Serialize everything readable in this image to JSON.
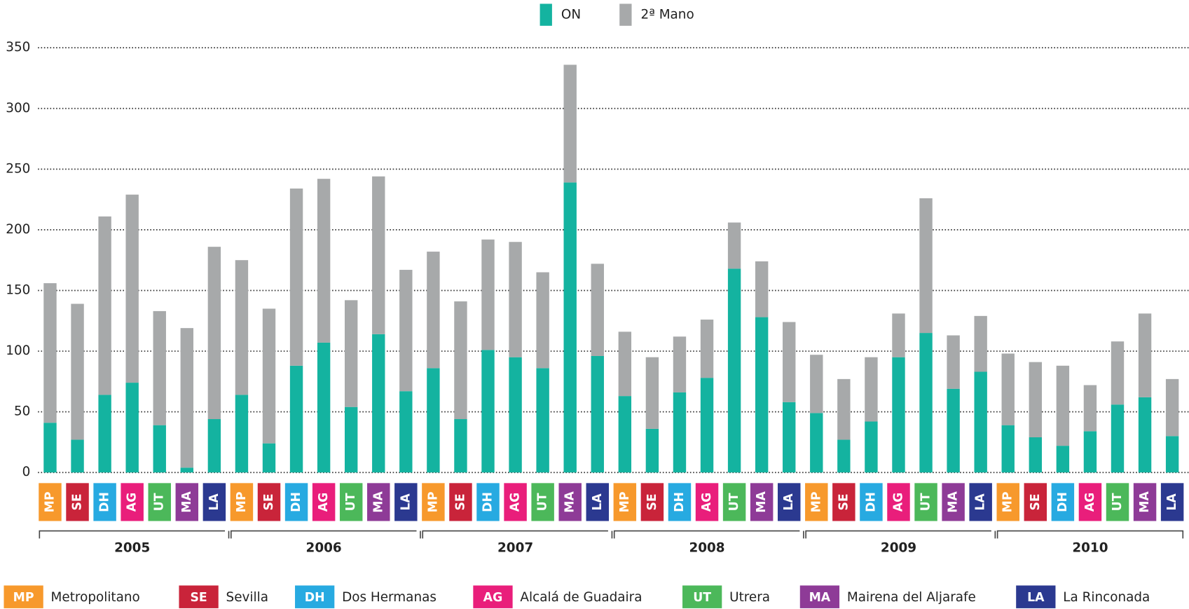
{
  "chart_data": {
    "type": "stacked_bar",
    "categories": [
      "MP",
      "SE",
      "DH",
      "AG",
      "UT",
      "MA",
      "LA",
      "MP",
      "SE",
      "DH",
      "AG",
      "UT",
      "MA",
      "LA",
      "MP",
      "SE",
      "DH",
      "AG",
      "UT",
      "MA",
      "LA",
      "MP",
      "SE",
      "DH",
      "AG",
      "UT",
      "MA",
      "LA",
      "MP",
      "SE",
      "DH",
      "AG",
      "UT",
      "MA",
      "LA",
      "MP",
      "SE",
      "DH",
      "AG",
      "UT",
      "MA",
      "LA"
    ],
    "groups": [
      "2005",
      "2006",
      "2007",
      "2008",
      "2009",
      "2010"
    ],
    "series": [
      {
        "name": "ON",
        "color": "#14b3a0",
        "values": [
          41,
          27,
          64,
          74,
          39,
          4,
          44,
          64,
          24,
          88,
          107,
          54,
          114,
          67,
          86,
          44,
          101,
          95,
          86,
          239,
          96,
          63,
          36,
          66,
          78,
          168,
          128,
          58,
          49,
          27,
          42,
          95,
          115,
          69,
          83,
          39,
          29,
          22,
          34,
          56,
          62,
          30
        ]
      },
      {
        "name": "2ª Mano",
        "color": "#a7a9aa",
        "values": [
          115,
          112,
          147,
          155,
          94,
          115,
          142,
          111,
          111,
          146,
          135,
          88,
          130,
          100,
          96,
          97,
          91,
          95,
          79,
          97,
          76,
          53,
          59,
          46,
          48,
          38,
          46,
          66,
          48,
          50,
          53,
          36,
          111,
          44,
          46,
          59,
          62,
          66,
          38,
          52,
          69,
          47
        ]
      }
    ],
    "regions": [
      {
        "code": "MP",
        "name": "Metropolitano",
        "color": "#f7992c"
      },
      {
        "code": "SE",
        "name": "Sevilla",
        "color": "#c9243a"
      },
      {
        "code": "DH",
        "name": "Dos Hermanas",
        "color": "#27aae1"
      },
      {
        "code": "AG",
        "name": "Alcalá de Guadaira",
        "color": "#e91e7b"
      },
      {
        "code": "UT",
        "name": "Utrera",
        "color": "#4cb85a"
      },
      {
        "code": "MA",
        "name": "Mairena del Aljarafe",
        "color": "#8e3b97"
      },
      {
        "code": "LA",
        "name": "La Rinconada",
        "color": "#2b3990"
      }
    ],
    "ylim": [
      0,
      350
    ],
    "yticks": [
      0,
      50,
      100,
      150,
      200,
      250,
      300,
      350
    ],
    "grid": true
  }
}
